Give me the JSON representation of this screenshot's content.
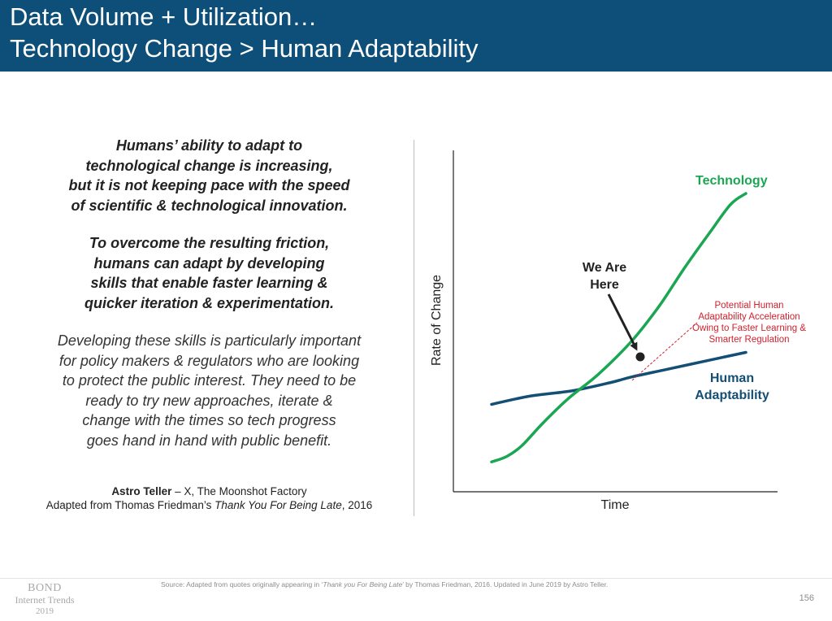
{
  "header": {
    "title_line1": "Data Volume + Utilization…",
    "title_line2": "Technology Change > Human Adaptability"
  },
  "quote": {
    "bold_para1": [
      "Humans’ ability to adapt to",
      "technological change is increasing,",
      "but it is not keeping pace with the speed",
      "of scientific & technological innovation."
    ],
    "bold_para2": [
      "To overcome the resulting friction,",
      "humans can adapt by developing",
      "skills that enable faster learning &",
      "quicker iteration & experimentation."
    ],
    "italic_para": [
      "Developing these skills is particularly important",
      "for policy makers & regulators who are looking",
      "to protect the public interest. They need to be",
      "ready to try new approaches, iterate &",
      "change with the times so tech progress",
      "goes hand in hand with public benefit."
    ],
    "attribution_name": "Astro Teller",
    "attribution_org": " – X, The Moonshot Factory",
    "adapted_prefix": "Adapted from Thomas Friedman’s ",
    "adapted_book": "Thank You For Being Late",
    "adapted_suffix": ", 2016"
  },
  "chart_data": {
    "type": "line",
    "xlabel": "Time",
    "ylabel": "Rate of Change",
    "series": [
      {
        "name": "Technology",
        "color": "#1aa653",
        "x": [
          0.0,
          0.06,
          0.12,
          0.2,
          0.3,
          0.42,
          0.55,
          0.66,
          0.76,
          0.86,
          0.94,
          1.0
        ],
        "y": [
          0.02,
          0.04,
          0.08,
          0.16,
          0.25,
          0.34,
          0.46,
          0.59,
          0.73,
          0.86,
          0.96,
          1.0
        ]
      },
      {
        "name": "Human Adaptability",
        "color": "#134e75",
        "x": [
          0.0,
          0.15,
          0.32,
          0.47,
          0.55,
          0.7,
          0.85,
          1.0
        ],
        "y": [
          0.23,
          0.26,
          0.28,
          0.31,
          0.33,
          0.36,
          0.39,
          0.42
        ]
      }
    ],
    "annotations": {
      "we_are_here_line1": "We Are",
      "we_are_here_line2": "Here",
      "potential_lines": [
        "Potential Human",
        "Adaptability Acceleration",
        "Owing to Faster Learning &",
        "Smarter Regulation"
      ],
      "potential_color": "#d0202e"
    }
  },
  "footer": {
    "source_prefix": "Source: Adapted from quotes originally appearing in ‘",
    "source_book": "Thank you For Being Late",
    "source_suffix": "’ by Thomas Friedman, 2016.  Updated in June 2019 by Astro Teller.",
    "page_number": "156",
    "logo_line1": "BOND",
    "logo_line2": "Internet Trends",
    "logo_line3": "2019"
  }
}
